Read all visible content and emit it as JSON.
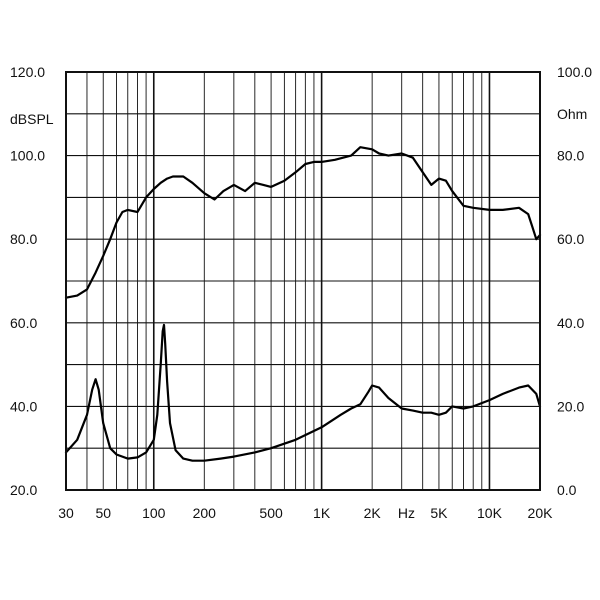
{
  "chart_data": {
    "type": "line",
    "xscale": "log",
    "xlim": [
      30,
      20000
    ],
    "grid": true,
    "legend": "none",
    "xlabel": "Hz",
    "x_ticks": [
      {
        "value": 30,
        "label": "30"
      },
      {
        "value": 50,
        "label": "50"
      },
      {
        "value": 100,
        "label": "100"
      },
      {
        "value": 200,
        "label": "200"
      },
      {
        "value": 500,
        "label": "500"
      },
      {
        "value": 1000,
        "label": "1K"
      },
      {
        "value": 2000,
        "label": "2K"
      },
      {
        "value": 5000,
        "label": "5K"
      },
      {
        "value": 10000,
        "label": "10K"
      },
      {
        "value": 20000,
        "label": "20K"
      }
    ],
    "y_left": {
      "label": "dBSPL",
      "ylim": [
        20,
        120
      ],
      "ticks": [
        "20.0",
        "40.0",
        "60.0",
        "80.0",
        "100.0",
        "120.0"
      ]
    },
    "y_right": {
      "label": "Ohm",
      "ylim": [
        0,
        100
      ],
      "ticks": [
        "0.0",
        "20.0",
        "40.0",
        "60.0",
        "80.0",
        "100.0"
      ]
    },
    "series": [
      {
        "axis": "left",
        "x": [
          30,
          35,
          40,
          45,
          50,
          55,
          60,
          65,
          70,
          80,
          90,
          100,
          110,
          120,
          130,
          150,
          170,
          200,
          230,
          260,
          300,
          350,
          400,
          450,
          500,
          600,
          700,
          800,
          900,
          1000,
          1200,
          1500,
          1700,
          2000,
          2200,
          2500,
          3000,
          3500,
          4000,
          4500,
          5000,
          5500,
          6000,
          7000,
          8000,
          10000,
          12000,
          15000,
          17000,
          18000,
          19000,
          20000
        ],
        "values": [
          66,
          66.5,
          68,
          72,
          76,
          80,
          84,
          86.5,
          87,
          86.5,
          90,
          92,
          93.5,
          94.5,
          95,
          95,
          93.5,
          91,
          89.5,
          91.5,
          93,
          91.5,
          93.5,
          93,
          92.5,
          94,
          96,
          98,
          98.5,
          98.5,
          99,
          100,
          102,
          101.5,
          100.5,
          100,
          100.5,
          99.5,
          96,
          93,
          94.5,
          94,
          91.5,
          88,
          87.5,
          87,
          87,
          87.5,
          86,
          83,
          80,
          81
        ]
      },
      {
        "axis": "right",
        "x": [
          30,
          35,
          40,
          43,
          45,
          47,
          50,
          55,
          60,
          70,
          80,
          90,
          100,
          105,
          110,
          113,
          115,
          117,
          120,
          125,
          135,
          150,
          170,
          200,
          250,
          300,
          400,
          500,
          700,
          1000,
          1300,
          1500,
          1700,
          1900,
          2000,
          2200,
          2500,
          3000,
          3500,
          4000,
          4500,
          5000,
          5500,
          6000,
          7000,
          8000,
          10000,
          12000,
          15000,
          17000,
          19000,
          20000
        ],
        "values": [
          9,
          12,
          18,
          24,
          26.5,
          24,
          16,
          10,
          8.5,
          7.5,
          7.8,
          9,
          12,
          18,
          30,
          38,
          39.5,
          35,
          26,
          16,
          9.5,
          7.5,
          7,
          7,
          7.5,
          8,
          9,
          10,
          12,
          15,
          18,
          19.5,
          20.5,
          23.5,
          25,
          24.5,
          22,
          19.5,
          19,
          18.5,
          18.5,
          18,
          18.5,
          20,
          19.5,
          20,
          21.5,
          23,
          24.5,
          25,
          23,
          20
        ]
      }
    ]
  }
}
